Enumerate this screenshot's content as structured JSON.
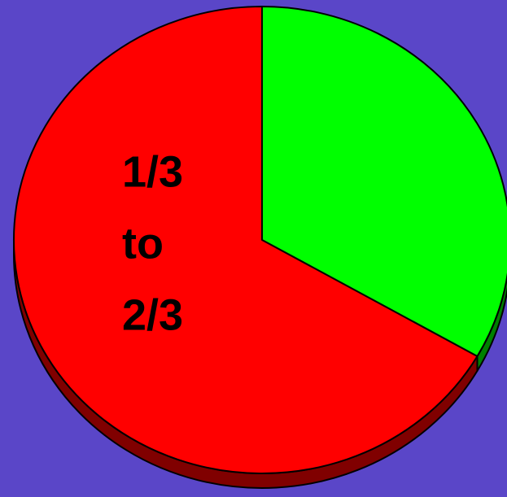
{
  "chart_data": {
    "type": "pie",
    "values": [
      33.3,
      66.7
    ],
    "colors": [
      "#00ff00",
      "#ff0000"
    ],
    "side_colors": [
      "#008000",
      "#800000"
    ],
    "background": "#5a46c8",
    "start_angle": 0,
    "direction": "clockwise",
    "three_d": true,
    "annotation": [
      "1/3",
      "to",
      "2/3"
    ]
  }
}
